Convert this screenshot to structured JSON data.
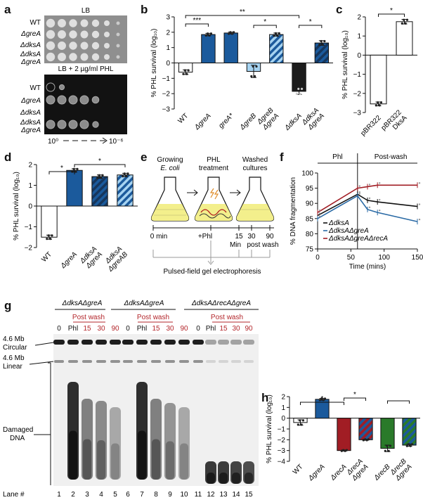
{
  "panels": {
    "a": {
      "letter": "a",
      "top_title": "LB",
      "bottom_title": "LB + 2 µg/ml PHL",
      "row_labels": [
        "WT",
        "ΔgreA",
        "ΔdksA",
        "ΔdksA ΔgreA"
      ],
      "dilution_start": "10⁰",
      "dilution_end": "10⁻⁶"
    },
    "b": {
      "letter": "b",
      "significance": [
        "***",
        "**",
        "*",
        "*"
      ]
    },
    "c": {
      "letter": "c",
      "significance": [
        "*"
      ]
    },
    "d": {
      "letter": "d",
      "significance": [
        "*",
        "*"
      ]
    },
    "e": {
      "letter": "e",
      "stage_labels": [
        "Growing",
        "E. coli",
        "PHL",
        "treatment",
        "Washed",
        "cultures"
      ],
      "timeline": [
        "0 min",
        "+Phl",
        "15",
        "30",
        "90",
        "Min",
        "post wash"
      ],
      "assay": "Pulsed-field gel electrophoresis"
    },
    "f": {
      "letter": "f",
      "phase_labels": [
        "Phl",
        "Post-wash"
      ]
    },
    "g": {
      "letter": "g",
      "groups": [
        "ΔdksAΔgreA",
        "ΔdksAΔgreA",
        "ΔdksAΔrecAΔgreA"
      ],
      "lane_headers": [
        "0",
        "Phl",
        "15",
        "30",
        "90"
      ],
      "post_wash": "Post wash",
      "side_labels": [
        "4.6 Mb",
        "Circular",
        "4.6 Mb",
        "Linear",
        "Damaged",
        "DNA"
      ],
      "lane_caption": "Lane #",
      "lane_numbers": [
        "1",
        "2",
        "3",
        "4",
        "5",
        "6",
        "7",
        "8",
        "9",
        "10",
        "11",
        "12",
        "13",
        "14",
        "15"
      ]
    },
    "h": {
      "letter": "h",
      "significance": [
        "*",
        "*"
      ]
    }
  },
  "colors": {
    "blue": "#1b5a9c",
    "light_blue": "#a6d3f1",
    "black": "#1c1c1c",
    "red": "#a11d24",
    "green": "#2a7a2a",
    "stripe_dark": "#16365c"
  },
  "chart_data": [
    {
      "panel": "b",
      "type": "bar",
      "categories": [
        "WT",
        "ΔgreA",
        "greA*",
        "ΔgreB",
        "ΔgreB ΔgreA",
        "ΔdksA",
        "ΔdksA ΔgreA"
      ],
      "values": [
        -0.6,
        1.85,
        1.95,
        -0.55,
        1.85,
        -1.85,
        1.3
      ],
      "errors": [
        0.15,
        0.08,
        0.06,
        0.4,
        0.1,
        0.2,
        0.15
      ],
      "fills": [
        "white",
        "blue",
        "blue",
        "light_blue",
        "stripe_light",
        "black",
        "stripe_dark"
      ],
      "ylabel": "% PHL survival (log₁₀)",
      "ylim": [
        -3,
        3
      ],
      "yticks": [
        -3,
        -2,
        -1,
        0,
        1,
        2,
        3
      ]
    },
    {
      "panel": "c",
      "type": "bar",
      "categories": [
        "pBR322",
        "pBR322 DksA"
      ],
      "values": [
        -2.55,
        1.75
      ],
      "errors": [
        0.1,
        0.12
      ],
      "fills": [
        "white",
        "white"
      ],
      "ylabel": "% PHL survival (log₁₀)",
      "ylim": [
        -3,
        2
      ],
      "yticks": [
        -3,
        -2,
        -1,
        0,
        1,
        2
      ]
    },
    {
      "panel": "d",
      "type": "bar",
      "categories": [
        "WT",
        "ΔgreA",
        "ΔdksA ΔgreA",
        "ΔdksA ΔgreAB"
      ],
      "values": [
        -1.5,
        1.72,
        1.42,
        1.5
      ],
      "errors": [
        0.1,
        0.08,
        0.08,
        0.08
      ],
      "fills": [
        "white",
        "blue",
        "stripe_dark",
        "stripe_light"
      ],
      "ylabel": "% PHL survival (log₁₀)",
      "ylim": [
        -2,
        2
      ],
      "yticks": [
        -2,
        -1,
        0,
        1,
        2
      ]
    },
    {
      "panel": "f",
      "type": "line",
      "x": [
        0,
        60,
        75,
        90,
        150
      ],
      "xlabel": "Time (mins)",
      "ylabel": "% DNA fragmentation",
      "xlim": [
        0,
        150
      ],
      "ylim": [
        75,
        100
      ],
      "xticks": [
        0,
        50,
        100,
        150
      ],
      "yticks": [
        75,
        80,
        85,
        90,
        95,
        100
      ],
      "series": [
        {
          "name": "ΔdksA",
          "color": "black",
          "values": [
            86,
            93,
            91,
            90.5,
            89
          ]
        },
        {
          "name": "ΔdksAΔgreA",
          "color": "blue",
          "values": [
            85,
            92.5,
            88,
            87,
            84
          ]
        },
        {
          "name": "ΔdksAΔgreAΔrecA",
          "color": "red",
          "values": [
            87,
            95,
            95.5,
            96,
            96
          ]
        }
      ]
    },
    {
      "panel": "h",
      "type": "bar",
      "categories": [
        "WT",
        "ΔgreA",
        "ΔrecA",
        "ΔrecA ΔgreA",
        "ΔrecB",
        "ΔrecB ΔgreA"
      ],
      "values": [
        -0.4,
        1.75,
        -3.0,
        -2.0,
        -2.8,
        -2.5
      ],
      "errors": [
        0.25,
        0.08,
        0.05,
        0.05,
        0.3,
        0.1
      ],
      "fills": [
        "white",
        "blue",
        "red",
        "stripe_red_blue",
        "green",
        "stripe_green_blue"
      ],
      "ylabel": "% PHL survival (log₁₀)",
      "ylim": [
        -4,
        2
      ],
      "yticks": [
        -4,
        -3,
        -2,
        -1,
        0,
        1,
        2
      ]
    }
  ]
}
